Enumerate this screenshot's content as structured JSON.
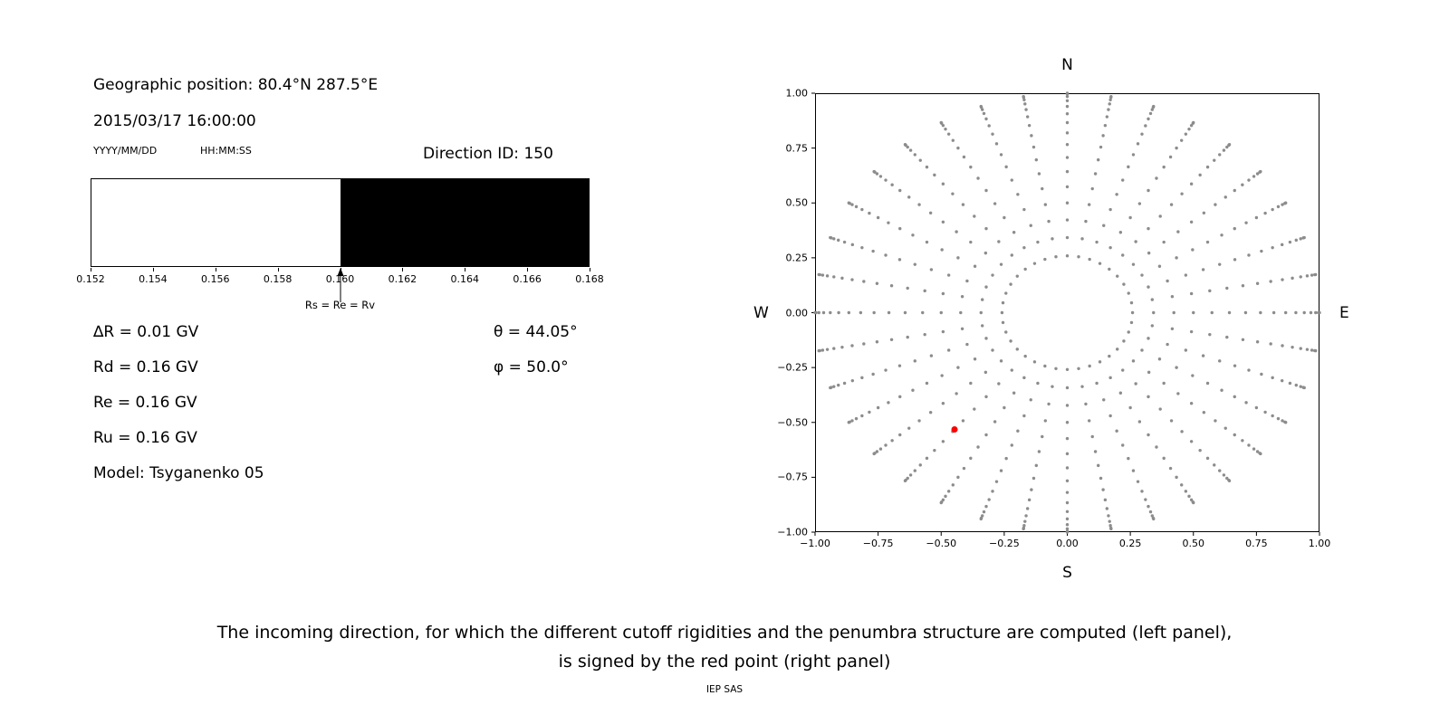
{
  "left_panel": {
    "geo_position": "Geographic position: 80.4°N 287.5°E",
    "datetime": "2015/03/17 16:00:00",
    "date_format_label": "YYYY/MM/DD",
    "time_format_label": "HH:MM:SS",
    "direction_id_label": "Direction ID: 150",
    "rigidity_lines": [
      "∆R = 0.01 GV",
      "Rd = 0.16 GV",
      "Re = 0.16 GV",
      "Ru = 0.16 GV",
      "Model: Tsyganenko 05"
    ],
    "theta_label": "θ = 44.05°",
    "phi_label": "φ = 50.0°"
  },
  "right_panel": {
    "compass": {
      "north": "N",
      "south": "S",
      "east": "E",
      "west": "W"
    }
  },
  "caption": {
    "line1": "The incoming direction, for which the different cutoff rigidities and the penumbra structure are computed (left panel),",
    "line2": "is signed by the red point (right panel)",
    "credit": "IEP SAS"
  },
  "chart_data": [
    {
      "id": "penumbra-bar",
      "type": "bar",
      "xlim": [
        0.152,
        0.168
      ],
      "xticks": [
        0.152,
        0.154,
        0.156,
        0.158,
        0.16,
        0.162,
        0.164,
        0.166,
        0.168
      ],
      "xtick_labels": [
        "0.152",
        "0.154",
        "0.156",
        "0.158",
        "0.160",
        "0.162",
        "0.164",
        "0.166",
        "0.168"
      ],
      "white_region": [
        0.152,
        0.16
      ],
      "black_region": [
        0.16,
        0.168
      ],
      "marker": {
        "x": 0.16,
        "label": "Rs = Re = Rv"
      },
      "colors": {
        "white_region": "#ffffff",
        "black_region": "#000000"
      }
    },
    {
      "id": "direction-map",
      "type": "scatter",
      "xlim": [
        -1.0,
        1.0
      ],
      "ylim": [
        -1.0,
        1.0
      ],
      "xticks": [
        -1.0,
        -0.75,
        -0.5,
        -0.25,
        0.0,
        0.25,
        0.5,
        0.75,
        1.0
      ],
      "xtick_labels": [
        "−1.00",
        "−0.75",
        "−0.50",
        "−0.25",
        "0.00",
        "0.25",
        "0.50",
        "0.75",
        "1.00"
      ],
      "yticks": [
        -1.0,
        -0.75,
        -0.5,
        -0.25,
        0.0,
        0.25,
        0.5,
        0.75,
        1.0
      ],
      "ytick_labels": [
        "−1.00",
        "−0.75",
        "−0.50",
        "−0.25",
        "0.00",
        "0.25",
        "0.50",
        "0.75",
        "1.00"
      ],
      "grid_points": {
        "azimuth_start_deg": 0,
        "azimuth_step_deg": 10,
        "azimuth_count": 36,
        "zenith_start_deg": 15,
        "zenith_step_deg": 5,
        "zenith_end_deg": 90,
        "radius_mapping": "sin(zenith)",
        "color": "#8c8c8c"
      },
      "red_point": {
        "x": -0.447,
        "y": -0.532,
        "theta_deg": 44.05,
        "phi_deg": 50.0,
        "color": "#ff0000"
      }
    }
  ]
}
